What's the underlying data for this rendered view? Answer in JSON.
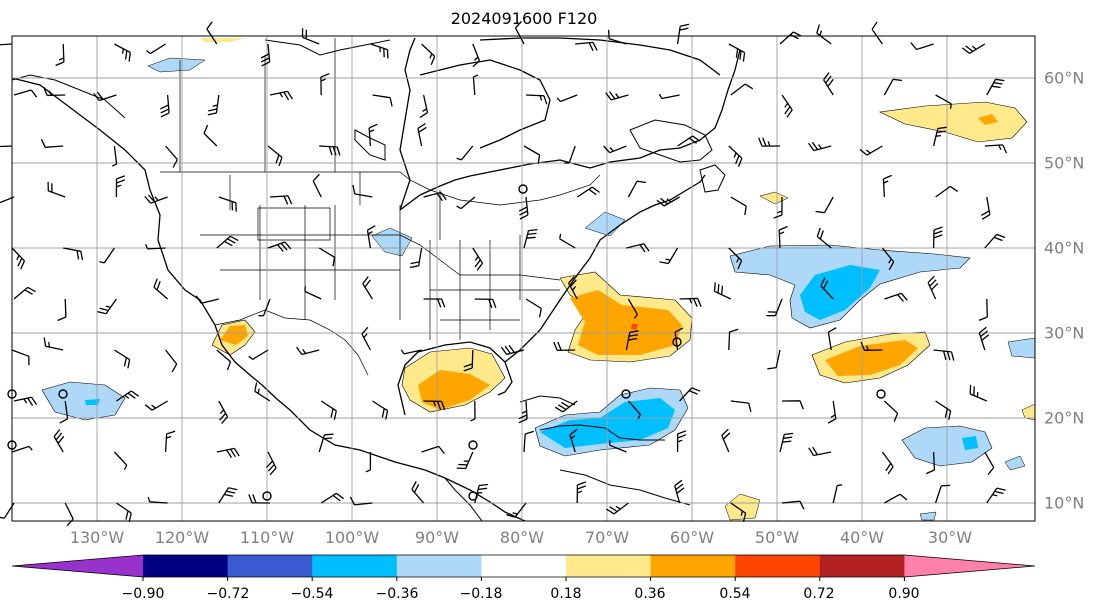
{
  "title": "2024091600 F120",
  "lon_labels": [
    "130°W",
    "120°W",
    "110°W",
    "100°W",
    "90°W",
    "80°W",
    "70°W",
    "60°W",
    "50°W",
    "40°W",
    "30°W"
  ],
  "lat_labels": [
    "60°N",
    "50°N",
    "40°N",
    "30°N",
    "20°N",
    "10°N"
  ],
  "colorbar": {
    "ticks": [
      "−0.90",
      "−0.72",
      "−0.54",
      "−0.36",
      "−0.18",
      "0.18",
      "0.36",
      "0.54",
      "0.72",
      "0.90"
    ],
    "colors": [
      "#9932cc",
      "#000080",
      "#3a5bd0",
      "#00bfff",
      "#add8f8",
      "#ffffff",
      "#ffe98a",
      "#ffa500",
      "#ff4500",
      "#b22222",
      "#ff80aa"
    ]
  },
  "palette": {
    "light_blue": "#add8f8",
    "blue": "#00bfff",
    "light_orange": "#ffe98a",
    "orange": "#ffa500",
    "red": "#ff4500",
    "grid": "#a0a0a0"
  }
}
